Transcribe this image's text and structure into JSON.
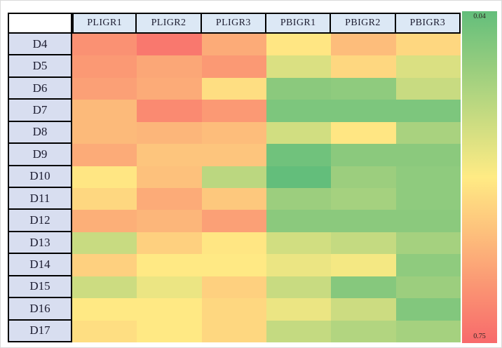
{
  "chart_data": {
    "type": "heatmap",
    "title": "",
    "columns": [
      "PLIGR1",
      "PLIGR2",
      "PLIGR3",
      "PBIGR1",
      "PBIGR2",
      "PBIGR3"
    ],
    "rows": [
      "D4",
      "D5",
      "D6",
      "D7",
      "D8",
      "D9",
      "D10",
      "D11",
      "D12",
      "D13",
      "D14",
      "D15",
      "D16",
      "D17"
    ],
    "values": [
      [
        0.64,
        0.71,
        0.57,
        0.41,
        0.52,
        0.45
      ],
      [
        0.62,
        0.58,
        0.62,
        0.31,
        0.45,
        0.31
      ],
      [
        0.6,
        0.57,
        0.43,
        0.13,
        0.14,
        0.27
      ],
      [
        0.53,
        0.66,
        0.62,
        0.1,
        0.1,
        0.1
      ],
      [
        0.53,
        0.54,
        0.52,
        0.29,
        0.41,
        0.2
      ],
      [
        0.57,
        0.5,
        0.5,
        0.07,
        0.13,
        0.13
      ],
      [
        0.41,
        0.51,
        0.24,
        0.04,
        0.17,
        0.14
      ],
      [
        0.45,
        0.57,
        0.49,
        0.17,
        0.19,
        0.14
      ],
      [
        0.56,
        0.54,
        0.6,
        0.13,
        0.13,
        0.13
      ],
      [
        0.27,
        0.47,
        0.41,
        0.29,
        0.26,
        0.19
      ],
      [
        0.47,
        0.4,
        0.4,
        0.35,
        0.37,
        0.14
      ],
      [
        0.28,
        0.35,
        0.47,
        0.27,
        0.12,
        0.17
      ],
      [
        0.4,
        0.4,
        0.45,
        0.35,
        0.28,
        0.11
      ],
      [
        0.43,
        0.4,
        0.45,
        0.26,
        0.22,
        0.19
      ]
    ],
    "scale": {
      "min_value": 0.04,
      "mid_value": 0.395,
      "max_value": 0.75,
      "min_label": "0.04",
      "max_label": "0.75",
      "min_color": "#63BE7B",
      "mid_color": "#FFEB84",
      "max_color": "#F8696B"
    },
    "legend_position": "right",
    "header_bg": "#dce8f5",
    "row_label_bg": "#d8def0",
    "grid": false
  }
}
